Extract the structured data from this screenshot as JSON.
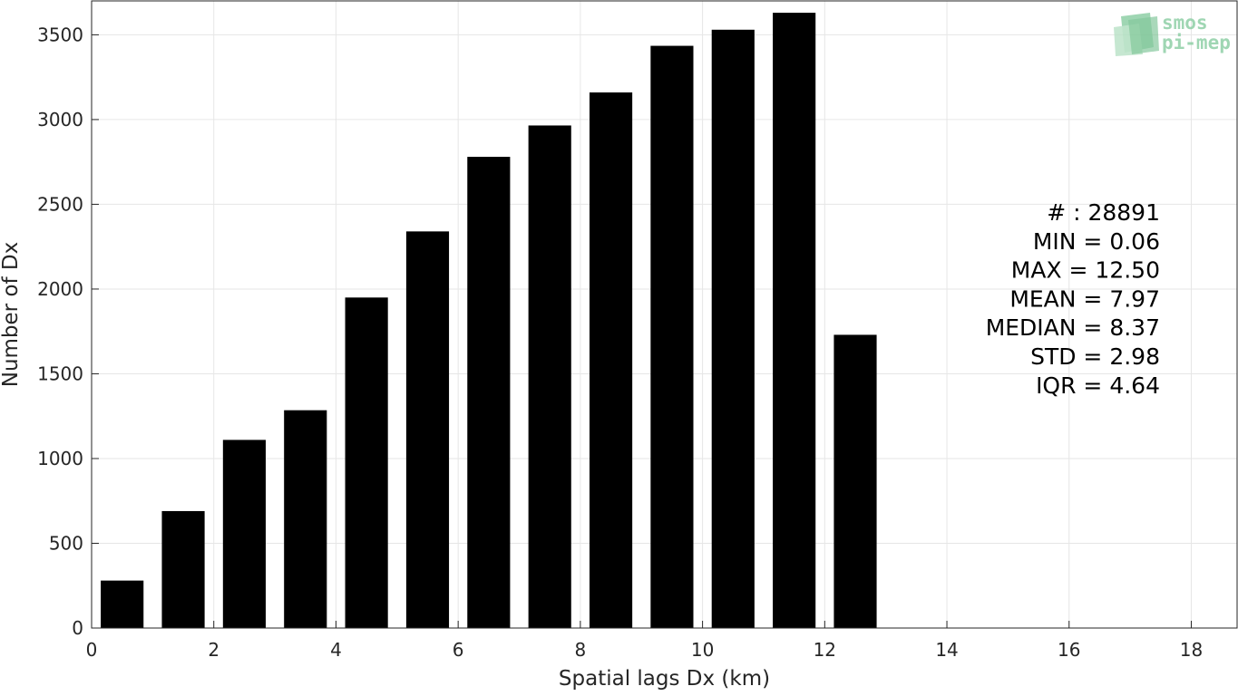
{
  "chart_data": {
    "type": "bar",
    "xlabel": "Spatial lags Dx (km)",
    "ylabel": "Number of Dx",
    "xlim": [
      0,
      18.75
    ],
    "ylim": [
      0,
      3700
    ],
    "grid": true,
    "bar_width": 0.7,
    "bar_color": "#000000",
    "x_ticks": [
      0,
      2,
      4,
      6,
      8,
      10,
      12,
      14,
      16,
      18
    ],
    "y_ticks": [
      0,
      500,
      1000,
      1500,
      2000,
      2500,
      3000,
      3500
    ],
    "x": [
      0.5,
      1.5,
      2.5,
      3.5,
      4.5,
      5.5,
      6.5,
      7.5,
      8.5,
      9.5,
      10.5,
      11.5,
      12.5
    ],
    "values": [
      280,
      690,
      1110,
      1285,
      1950,
      2340,
      2780,
      2965,
      3160,
      3435,
      3530,
      3630,
      1730
    ]
  },
  "stats": [
    "# : 28891",
    "MIN = 0.06",
    "MAX =  12.50",
    "MEAN = 7.97",
    "MEDIAN = 8.37",
    "STD = 2.98",
    "IQR = 4.64"
  ],
  "logo": {
    "line1": "smos",
    "line2": "pi-mep",
    "color": "#8fcfa6"
  }
}
